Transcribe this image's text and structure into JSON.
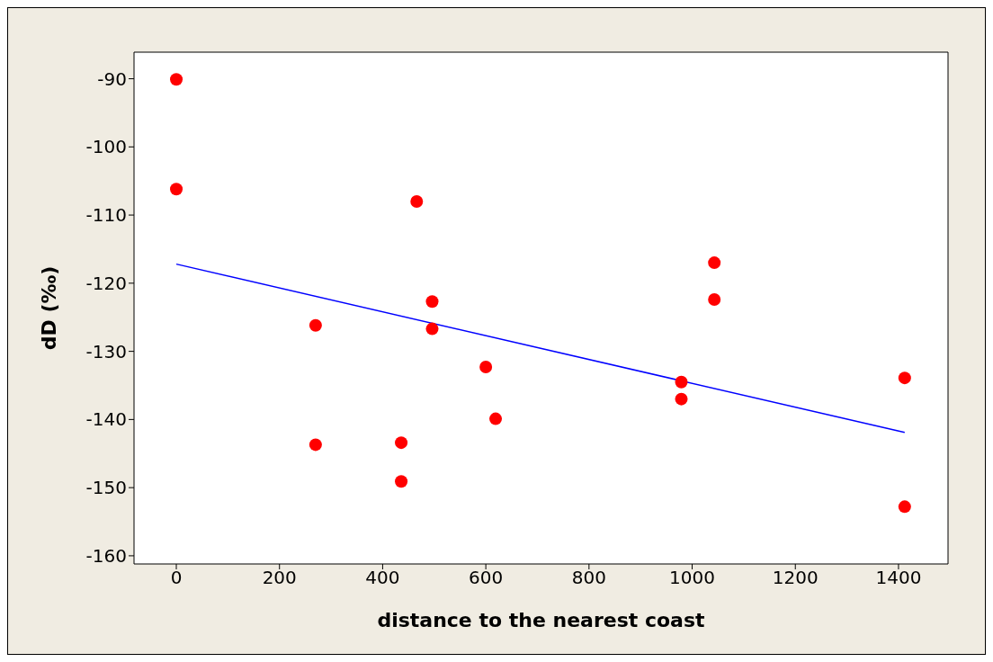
{
  "chart_data": {
    "type": "scatter",
    "xlabel": "distance to the nearest coast",
    "ylabel": "dD (‰)",
    "x": [
      0,
      0,
      466,
      270,
      270,
      436,
      436,
      496,
      496,
      600,
      619,
      979,
      979,
      1043,
      1043,
      1412,
      1412
    ],
    "series": [
      {
        "color": "#ff0000",
        "marker": "circle",
        "values": [
          -90.1,
          -106.2,
          -108.0,
          -126.2,
          -143.7,
          -143.4,
          -149.1,
          -122.7,
          -126.7,
          -132.3,
          -139.9,
          -134.5,
          -137.0,
          -117.0,
          -122.4,
          -133.9,
          -152.8
        ]
      },
      {
        "type": "line",
        "color": "#0000ff",
        "marker": "none",
        "x": [
          0,
          1412
        ],
        "values": [
          -117.2,
          -141.9
        ]
      }
    ],
    "xlim": [
      -82,
      1496
    ],
    "xticks": [
      0,
      200,
      400,
      600,
      800,
      1000,
      1200,
      1400
    ],
    "ylim": [
      -161.2,
      -86.1
    ],
    "yticks": [
      -160,
      -150,
      -140,
      -130,
      -120,
      -110,
      -100,
      -90
    ],
    "grid": false,
    "legend": false
  }
}
